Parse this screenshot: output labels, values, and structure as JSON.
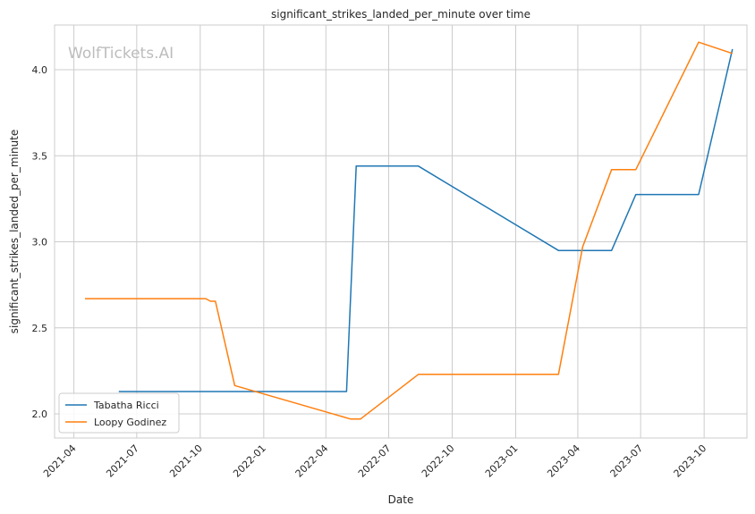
{
  "watermark": "WolfTickets.AI",
  "chart_data": {
    "type": "line",
    "title": "significant_strikes_landed_per_minute over time",
    "xlabel": "Date",
    "ylabel": "significant_strikes_landed_per_minute",
    "xlim": [
      "2021-03-04",
      "2023-12-02"
    ],
    "ylim": [
      1.86,
      4.26
    ],
    "x_ticks": [
      "2021-04",
      "2021-07",
      "2021-10",
      "2022-01",
      "2022-04",
      "2022-07",
      "2022-10",
      "2023-01",
      "2023-04",
      "2023-07",
      "2023-10"
    ],
    "y_ticks": [
      "2.0",
      "2.5",
      "3.0",
      "3.5",
      "4.0"
    ],
    "grid": true,
    "legend_position": "lower-left",
    "series": [
      {
        "name": "Tabatha Ricci",
        "color": "#1f77b4",
        "points": [
          [
            "2021-06-05",
            2.13
          ],
          [
            "2022-05-01",
            2.13
          ],
          [
            "2022-05-15",
            3.44
          ],
          [
            "2022-08-13",
            3.44
          ],
          [
            "2023-03-04",
            2.95
          ],
          [
            "2023-05-20",
            2.95
          ],
          [
            "2023-06-24",
            3.275
          ],
          [
            "2023-09-23",
            3.275
          ],
          [
            "2023-11-11",
            4.12
          ]
        ]
      },
      {
        "name": "Loopy Godinez",
        "color": "#ff7f0e",
        "points": [
          [
            "2021-04-17",
            2.67
          ],
          [
            "2021-10-09",
            2.67
          ],
          [
            "2021-10-16",
            2.655
          ],
          [
            "2021-10-23",
            2.655
          ],
          [
            "2021-11-20",
            2.165
          ],
          [
            "2022-05-07",
            1.97
          ],
          [
            "2022-05-21",
            1.97
          ],
          [
            "2022-08-13",
            2.23
          ],
          [
            "2023-03-04",
            2.23
          ],
          [
            "2023-04-08",
            2.97
          ],
          [
            "2023-05-20",
            3.42
          ],
          [
            "2023-06-24",
            3.42
          ],
          [
            "2023-09-23",
            4.16
          ],
          [
            "2023-11-11",
            4.095
          ]
        ]
      }
    ]
  }
}
